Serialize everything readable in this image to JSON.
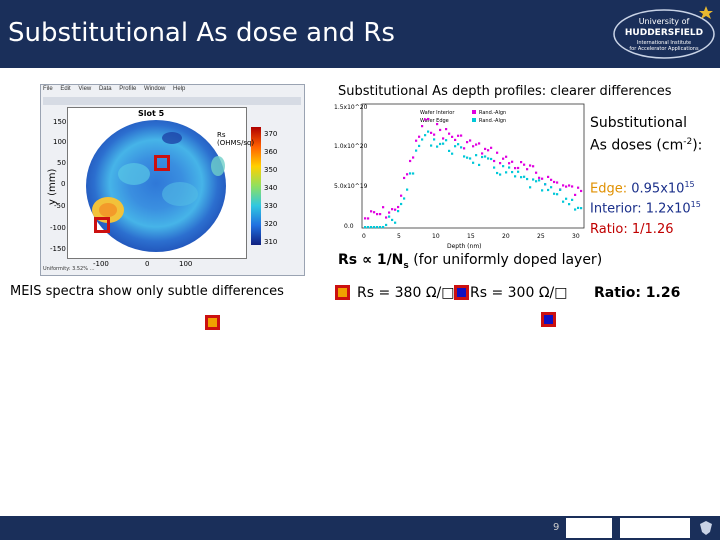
{
  "slide": {
    "title": "Substitutional As dose and Rs",
    "page_number": "9",
    "left_caption": "MEIS spectra show only subtle differences",
    "right_heading": "Substitutional As depth profiles: clearer differences"
  },
  "rs_map_window": {
    "menu": [
      "File",
      "Edit",
      "View",
      "Data",
      "Profile",
      "Window",
      "Help"
    ],
    "plot_title": "Slot 5",
    "y_axis_label": "y (mm)",
    "y_ticks": [
      "150",
      "100",
      "50",
      "0",
      "-50",
      "-100",
      "-150"
    ],
    "x_ticks": [
      "-100",
      "0",
      "100"
    ],
    "colorbar_label": "Rs\n(OHMS/sq)",
    "colorbar_ticks": [
      "370",
      "360",
      "350",
      "340",
      "330",
      "320",
      "310"
    ],
    "status_line": "Uniformity: 3.52% …"
  },
  "depth_profile_chart": {
    "y_ticks": [
      "1.5x10^20",
      "1.0x10^20",
      "5.0x10^19",
      "0.0"
    ],
    "x_ticks": [
      "0",
      "5",
      "10",
      "15",
      "20",
      "25",
      "30"
    ],
    "x_label": "Depth (nm)",
    "legend_left": [
      "Wafer Interior",
      "Wafer Edge"
    ],
    "legend_right": [
      "Rand.-Algn",
      "Rand.-Algn"
    ],
    "series_colors": [
      "#e000e0",
      "#00c8d8"
    ]
  },
  "doses": {
    "heading_line1": "Substitutional",
    "heading_line2": "As doses (cm",
    "heading_exp": "-2",
    "heading_tail": "):",
    "edge_label": "Edge:",
    "edge_value": "0.95x10",
    "edge_exp": "15",
    "interior_label": "Interior:",
    "interior_value": "1.2x10",
    "interior_exp": "15",
    "ratio_text": "Ratio: 1/1.26"
  },
  "formula": {
    "prefix": "Rs ∝ ",
    "fraction": "1/N",
    "subscript": "s",
    "suffix": " (for uniformly doped layer)"
  },
  "rs_values": {
    "edge": "Rs = 380 Ω/□",
    "interior": "Rs = 300 Ω/□",
    "ratio": "Ratio: 1.26"
  },
  "colors": {
    "header_bg": "#1a2f5a",
    "edge_orange": "#f0a000",
    "marker_red": "#cc1010",
    "interior_blue": "#1010c0",
    "ratio_red": "#c00000",
    "edge_text": "#e09000"
  },
  "logo": {
    "line1": "University of",
    "line2": "HUDDERSFIELD",
    "line3": "International Institute",
    "line4": "for Accelerator Applications"
  }
}
